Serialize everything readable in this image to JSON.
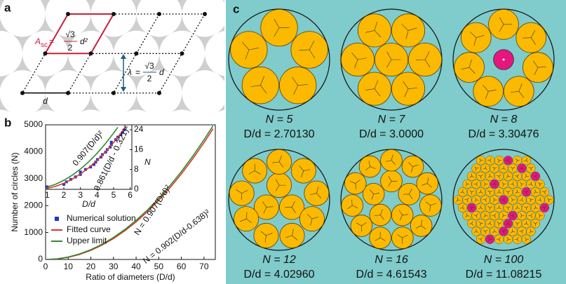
{
  "panel_labels": {
    "a": "a",
    "b": "b",
    "c": "c"
  },
  "panel_a": {
    "area_symbol": "A",
    "area_subscript": "sc",
    "equals": "=",
    "sqrt3": "√3",
    "two": "2",
    "area_tail": "d²",
    "lambda": "λ",
    "lambda_tail": "d",
    "d": "d"
  },
  "chart_data": [
    {
      "type": "line",
      "x_label": "Ratio of diameters (D/d)",
      "y_label": "Number of circles (N)",
      "x": [
        0,
        5,
        10,
        15,
        20,
        25,
        30,
        35,
        40,
        45,
        50,
        55,
        60,
        65,
        70,
        74
      ],
      "xlim": [
        0,
        75
      ],
      "xticks": [
        0,
        10,
        20,
        30,
        40,
        50,
        60,
        70
      ],
      "ylim": [
        0,
        5000
      ],
      "yticks": [
        0,
        1000,
        2000,
        3000,
        4000,
        5000
      ],
      "legend": "lower left",
      "series": [
        {
          "name": "Fitted curve",
          "label": "N = 0.902(D/d-0.638)²",
          "color": "#d9342b",
          "values": [
            0.367,
            17.2,
            79.1,
            186.1,
            338.1,
            535.4,
            777.6,
            1065.0,
            1397.5,
            1775.1,
            2197.8,
            2665.6,
            3178.5,
            3736.5,
            4339.6,
            4854.5
          ]
        },
        {
          "name": "Upper limit",
          "label": "N = 0.907(D/d)²",
          "color": "#2e8b2e",
          "values": [
            0,
            22.7,
            90.7,
            204.1,
            362.8,
            566.9,
            816.3,
            1111.1,
            1451.2,
            1836.7,
            2267.5,
            2743.7,
            3265.2,
            3832.1,
            4444.3,
            4966.7
          ]
        }
      ]
    },
    {
      "type": "line",
      "x_label": "D/d",
      "y_label": "N",
      "xlim": [
        0.9,
        6.1
      ],
      "xticks": [
        1,
        2,
        3,
        4,
        5,
        6
      ],
      "ylim": [
        0,
        26
      ],
      "yticks": [
        0,
        8,
        16,
        24
      ],
      "series": [
        {
          "name": "Numerical solution",
          "color": "#2233cc",
          "marker": "square",
          "x": [
            1,
            2,
            2.1547,
            2.4142,
            2.7013,
            3,
            3,
            3.3048,
            3.6131,
            3.813,
            3.9238,
            4.0296,
            4.236,
            4.3284,
            4.5213,
            4.6154,
            4.792,
            4.8637,
            4.8637,
            5.1223,
            5.2523,
            5.4397,
            5.5452,
            5.6517
          ],
          "values": [
            1,
            2,
            3,
            4,
            5,
            6,
            7,
            8,
            9,
            10,
            11,
            12,
            13,
            14,
            15,
            16,
            17,
            18,
            19,
            20,
            21,
            22,
            23,
            24
          ]
        },
        {
          "label": "0.861(D/d - 0.321)²",
          "color": "#d9342b",
          "x": [
            1,
            1.5,
            2,
            2.5,
            3,
            3.5,
            4,
            4.5,
            5,
            5.5,
            5.75
          ],
          "values": [
            0.397,
            1.197,
            2.427,
            4.088,
            6.179,
            8.701,
            11.654,
            15.037,
            18.85,
            23.094,
            25.377
          ]
        },
        {
          "label": "0.907(D/d)²",
          "color": "#2e8b2e",
          "x": [
            1,
            1.5,
            2,
            2.5,
            3,
            3.5,
            4,
            4.5,
            5,
            5.25
          ],
          "values": [
            0.907,
            2.041,
            3.628,
            5.669,
            8.163,
            11.111,
            14.512,
            18.367,
            22.675,
            25.0
          ]
        }
      ]
    }
  ],
  "panel_c": {
    "packings": [
      {
        "n": "N = 5",
        "ratio": "D/d = 2.70130"
      },
      {
        "n": "N = 7",
        "ratio": "D/d = 3.0000"
      },
      {
        "n": "N = 8",
        "ratio": "D/d = 3.30476"
      },
      {
        "n": "N = 12",
        "ratio": "D/d = 4.02960"
      },
      {
        "n": "N = 16",
        "ratio": "D/d = 4.61543"
      },
      {
        "n": "N = 100",
        "ratio": "D/d = 11.08215"
      }
    ]
  }
}
